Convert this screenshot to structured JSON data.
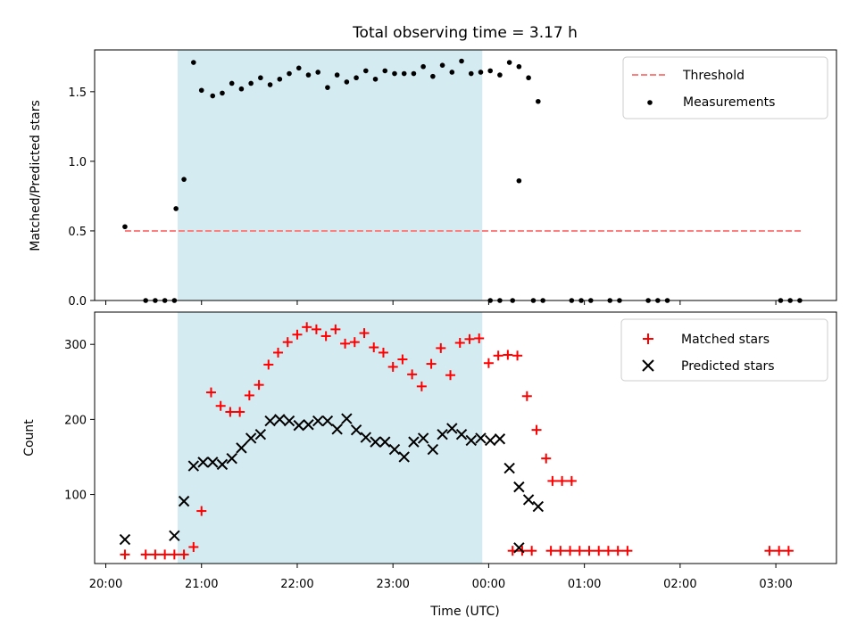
{
  "chart_data": {
    "type": "scatter",
    "title": "Total observing time = 3.17 h",
    "xlabel": "Time (UTC)",
    "x_tick_labels": [
      "20:00",
      "21:00",
      "22:00",
      "23:00",
      "00:00",
      "01:00",
      "02:00",
      "03:00"
    ],
    "x_tick_hours": [
      20,
      21,
      22,
      23,
      24,
      25,
      26,
      27
    ],
    "xlim": [
      "19:53",
      "03:38"
    ],
    "observing_window": [
      "20:45",
      "23:56"
    ],
    "observing_window_color": "#d4ebf1",
    "grid": false,
    "panels": [
      {
        "ylabel": "Matched/Predicted stars",
        "ylim": [
          0,
          1.8
        ],
        "y_ticks": [
          "0.0",
          "0.5",
          "1.0",
          "1.5"
        ],
        "y_tick_values": [
          0,
          0.5,
          1.0,
          1.5
        ],
        "legend": "top-right",
        "threshold": {
          "name": "Threshold",
          "value": 0.5,
          "x_range": [
            "20:12",
            "03:17"
          ],
          "color": "#ff7f7f",
          "style": "dashed"
        },
        "series": [
          {
            "name": "Measurements",
            "marker": "dot",
            "color": "#000000",
            "points": [
              [
                "20:12",
                0.53
              ],
              [
                "20:25",
                0.0
              ],
              [
                "20:31",
                0.0
              ],
              [
                "20:37",
                0.0
              ],
              [
                "20:43",
                0.0
              ],
              [
                "20:44",
                0.66
              ],
              [
                "20:49",
                0.87
              ],
              [
                "20:55",
                1.71
              ],
              [
                "21:00",
                1.51
              ],
              [
                "21:07",
                1.47
              ],
              [
                "21:13",
                1.49
              ],
              [
                "21:19",
                1.56
              ],
              [
                "21:25",
                1.52
              ],
              [
                "21:31",
                1.56
              ],
              [
                "21:37",
                1.6
              ],
              [
                "21:43",
                1.55
              ],
              [
                "21:49",
                1.59
              ],
              [
                "21:55",
                1.63
              ],
              [
                "22:01",
                1.67
              ],
              [
                "22:07",
                1.62
              ],
              [
                "22:13",
                1.64
              ],
              [
                "22:19",
                1.53
              ],
              [
                "22:25",
                1.62
              ],
              [
                "22:31",
                1.57
              ],
              [
                "22:37",
                1.6
              ],
              [
                "22:43",
                1.65
              ],
              [
                "22:49",
                1.59
              ],
              [
                "22:55",
                1.65
              ],
              [
                "23:01",
                1.63
              ],
              [
                "23:07",
                1.63
              ],
              [
                "23:13",
                1.63
              ],
              [
                "23:19",
                1.68
              ],
              [
                "23:25",
                1.61
              ],
              [
                "23:31",
                1.69
              ],
              [
                "23:37",
                1.64
              ],
              [
                "23:43",
                1.72
              ],
              [
                "23:49",
                1.63
              ],
              [
                "23:55",
                1.64
              ],
              [
                "00:01",
                1.65
              ],
              [
                "00:07",
                1.62
              ],
              [
                "00:13",
                1.71
              ],
              [
                "00:19",
                1.68
              ],
              [
                "00:25",
                1.6
              ],
              [
                "00:31",
                1.43
              ],
              [
                "00:01",
                0.0
              ],
              [
                "00:07",
                0.0
              ],
              [
                "00:19",
                0.86
              ],
              [
                "00:15",
                0.0
              ],
              [
                "00:28",
                0.0
              ],
              [
                "00:34",
                0.0
              ],
              [
                "00:52",
                0.0
              ],
              [
                "00:58",
                0.0
              ],
              [
                "01:04",
                0.0
              ],
              [
                "01:16",
                0.0
              ],
              [
                "01:22",
                0.0
              ],
              [
                "01:40",
                0.0
              ],
              [
                "01:46",
                0.0
              ],
              [
                "01:52",
                0.0
              ],
              [
                "03:03",
                0.0
              ],
              [
                "03:09",
                0.0
              ],
              [
                "03:15",
                0.0
              ]
            ]
          }
        ]
      },
      {
        "ylabel": "Count",
        "ylim": [
          8,
          343
        ],
        "y_ticks": [
          "100",
          "200",
          "300"
        ],
        "y_tick_values": [
          100,
          200,
          300
        ],
        "legend": "top-right",
        "series": [
          {
            "name": "Matched stars",
            "marker": "plus",
            "color": "#ff0000",
            "points": [
              [
                "20:12",
                20
              ],
              [
                "20:25",
                20
              ],
              [
                "20:31",
                20
              ],
              [
                "20:37",
                20
              ],
              [
                "20:43",
                20
              ],
              [
                "20:49",
                20
              ],
              [
                "20:55",
                30
              ],
              [
                "21:00",
                78
              ],
              [
                "21:06",
                236
              ],
              [
                "21:12",
                218
              ],
              [
                "21:18",
                210
              ],
              [
                "21:24",
                210
              ],
              [
                "21:30",
                232
              ],
              [
                "21:36",
                246
              ],
              [
                "21:42",
                273
              ],
              [
                "21:48",
                289
              ],
              [
                "21:54",
                303
              ],
              [
                "22:00",
                313
              ],
              [
                "22:06",
                323
              ],
              [
                "22:12",
                320
              ],
              [
                "22:18",
                311
              ],
              [
                "22:24",
                320
              ],
              [
                "22:30",
                301
              ],
              [
                "22:36",
                303
              ],
              [
                "22:42",
                315
              ],
              [
                "22:48",
                296
              ],
              [
                "22:54",
                289
              ],
              [
                "23:00",
                270
              ],
              [
                "23:06",
                280
              ],
              [
                "23:12",
                260
              ],
              [
                "23:18",
                244
              ],
              [
                "23:24",
                274
              ],
              [
                "23:30",
                295
              ],
              [
                "23:36",
                259
              ],
              [
                "23:42",
                302
              ],
              [
                "23:48",
                307
              ],
              [
                "23:54",
                308
              ],
              [
                "00:00",
                275
              ],
              [
                "00:06",
                285
              ],
              [
                "00:12",
                286
              ],
              [
                "00:18",
                285
              ],
              [
                "00:24",
                231
              ],
              [
                "00:30",
                186
              ],
              [
                "00:36",
                148
              ],
              [
                "00:40",
                118
              ],
              [
                "00:46",
                118
              ],
              [
                "00:52",
                118
              ],
              [
                "00:15",
                25
              ],
              [
                "00:21",
                25
              ],
              [
                "00:27",
                25
              ],
              [
                "00:39",
                25
              ],
              [
                "00:45",
                25
              ],
              [
                "00:51",
                25
              ],
              [
                "00:57",
                25
              ],
              [
                "01:03",
                25
              ],
              [
                "01:09",
                25
              ],
              [
                "01:15",
                25
              ],
              [
                "01:21",
                25
              ],
              [
                "01:27",
                25
              ],
              [
                "02:56",
                25
              ],
              [
                "03:02",
                25
              ],
              [
                "03:08",
                25
              ]
            ]
          },
          {
            "name": "Predicted stars",
            "marker": "x",
            "color": "#000000",
            "points": [
              [
                "20:12",
                40
              ],
              [
                "20:43",
                45
              ],
              [
                "20:49",
                91
              ],
              [
                "20:55",
                138
              ],
              [
                "21:01",
                143
              ],
              [
                "21:07",
                143
              ],
              [
                "21:13",
                140
              ],
              [
                "21:19",
                148
              ],
              [
                "21:25",
                162
              ],
              [
                "21:31",
                175
              ],
              [
                "21:37",
                180
              ],
              [
                "21:43",
                198
              ],
              [
                "21:49",
                200
              ],
              [
                "21:55",
                198
              ],
              [
                "22:01",
                192
              ],
              [
                "22:07",
                193
              ],
              [
                "22:13",
                198
              ],
              [
                "22:19",
                198
              ],
              [
                "22:25",
                187
              ],
              [
                "22:31",
                201
              ],
              [
                "22:37",
                186
              ],
              [
                "22:43",
                176
              ],
              [
                "22:49",
                170
              ],
              [
                "22:55",
                170
              ],
              [
                "23:01",
                160
              ],
              [
                "23:07",
                150
              ],
              [
                "23:13",
                170
              ],
              [
                "23:19",
                175
              ],
              [
                "23:25",
                160
              ],
              [
                "23:31",
                180
              ],
              [
                "23:37",
                188
              ],
              [
                "23:43",
                180
              ],
              [
                "23:49",
                172
              ],
              [
                "23:55",
                175
              ],
              [
                "00:01",
                172
              ],
              [
                "00:07",
                174
              ],
              [
                "00:13",
                135
              ],
              [
                "00:19",
                110
              ],
              [
                "00:25",
                93
              ],
              [
                "00:31",
                84
              ],
              [
                "00:19",
                29
              ]
            ]
          }
        ]
      }
    ]
  }
}
